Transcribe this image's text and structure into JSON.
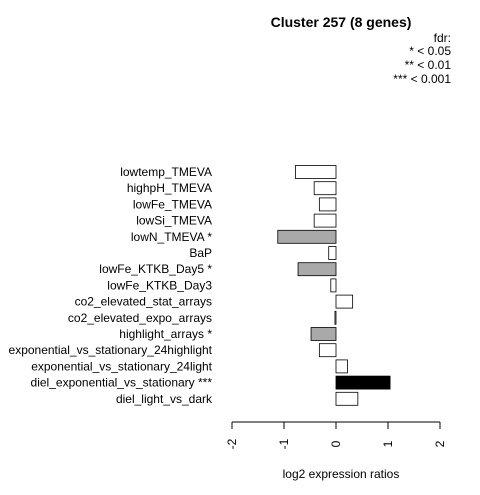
{
  "chart_data": {
    "type": "bar",
    "orientation": "horizontal",
    "title": "Cluster 257 (8 genes)",
    "legend": {
      "heading": "fdr:",
      "entries": [
        "* < 0.05",
        "** < 0.01",
        "*** < 0.001"
      ]
    },
    "xlabel": "log2 expression ratios",
    "xlim": [
      -2,
      2
    ],
    "xticks": [
      -2,
      -1,
      0,
      1,
      2
    ],
    "xtick_labels": [
      "-2",
      "-1",
      "0",
      "1",
      "2"
    ],
    "categories": [
      "lowtemp_TMEVA",
      "highpH_TMEVA",
      "lowFe_TMEVA",
      "lowSi_TMEVA",
      "lowN_TMEVA *",
      "BaP",
      "lowFe_KTKB_Day5 *",
      "lowFe_KTKB_Day3",
      "co2_elevated_stat_arrays",
      "co2_elevated_expo_arrays",
      "highlight_arrays *",
      "exponential_vs_stationary_24highlight",
      "exponential_vs_stationary_24light",
      "diel_exponential_vs_stationary ***",
      "diel_light_vs_dark"
    ],
    "values": [
      -0.78,
      -0.42,
      -0.32,
      -0.42,
      -1.12,
      -0.14,
      -0.73,
      -0.1,
      0.32,
      -0.02,
      -0.48,
      -0.32,
      0.22,
      1.04,
      0.42
    ],
    "significance": [
      "",
      "",
      "",
      "",
      "*",
      "",
      "*",
      "",
      "",
      "",
      "*",
      "",
      "",
      "***",
      ""
    ],
    "fill_colors": {
      "none": "#ffffff",
      "*": "#a9a9a9",
      "**": "#6e6e6e",
      "***": "#000000"
    },
    "grid": false
  }
}
